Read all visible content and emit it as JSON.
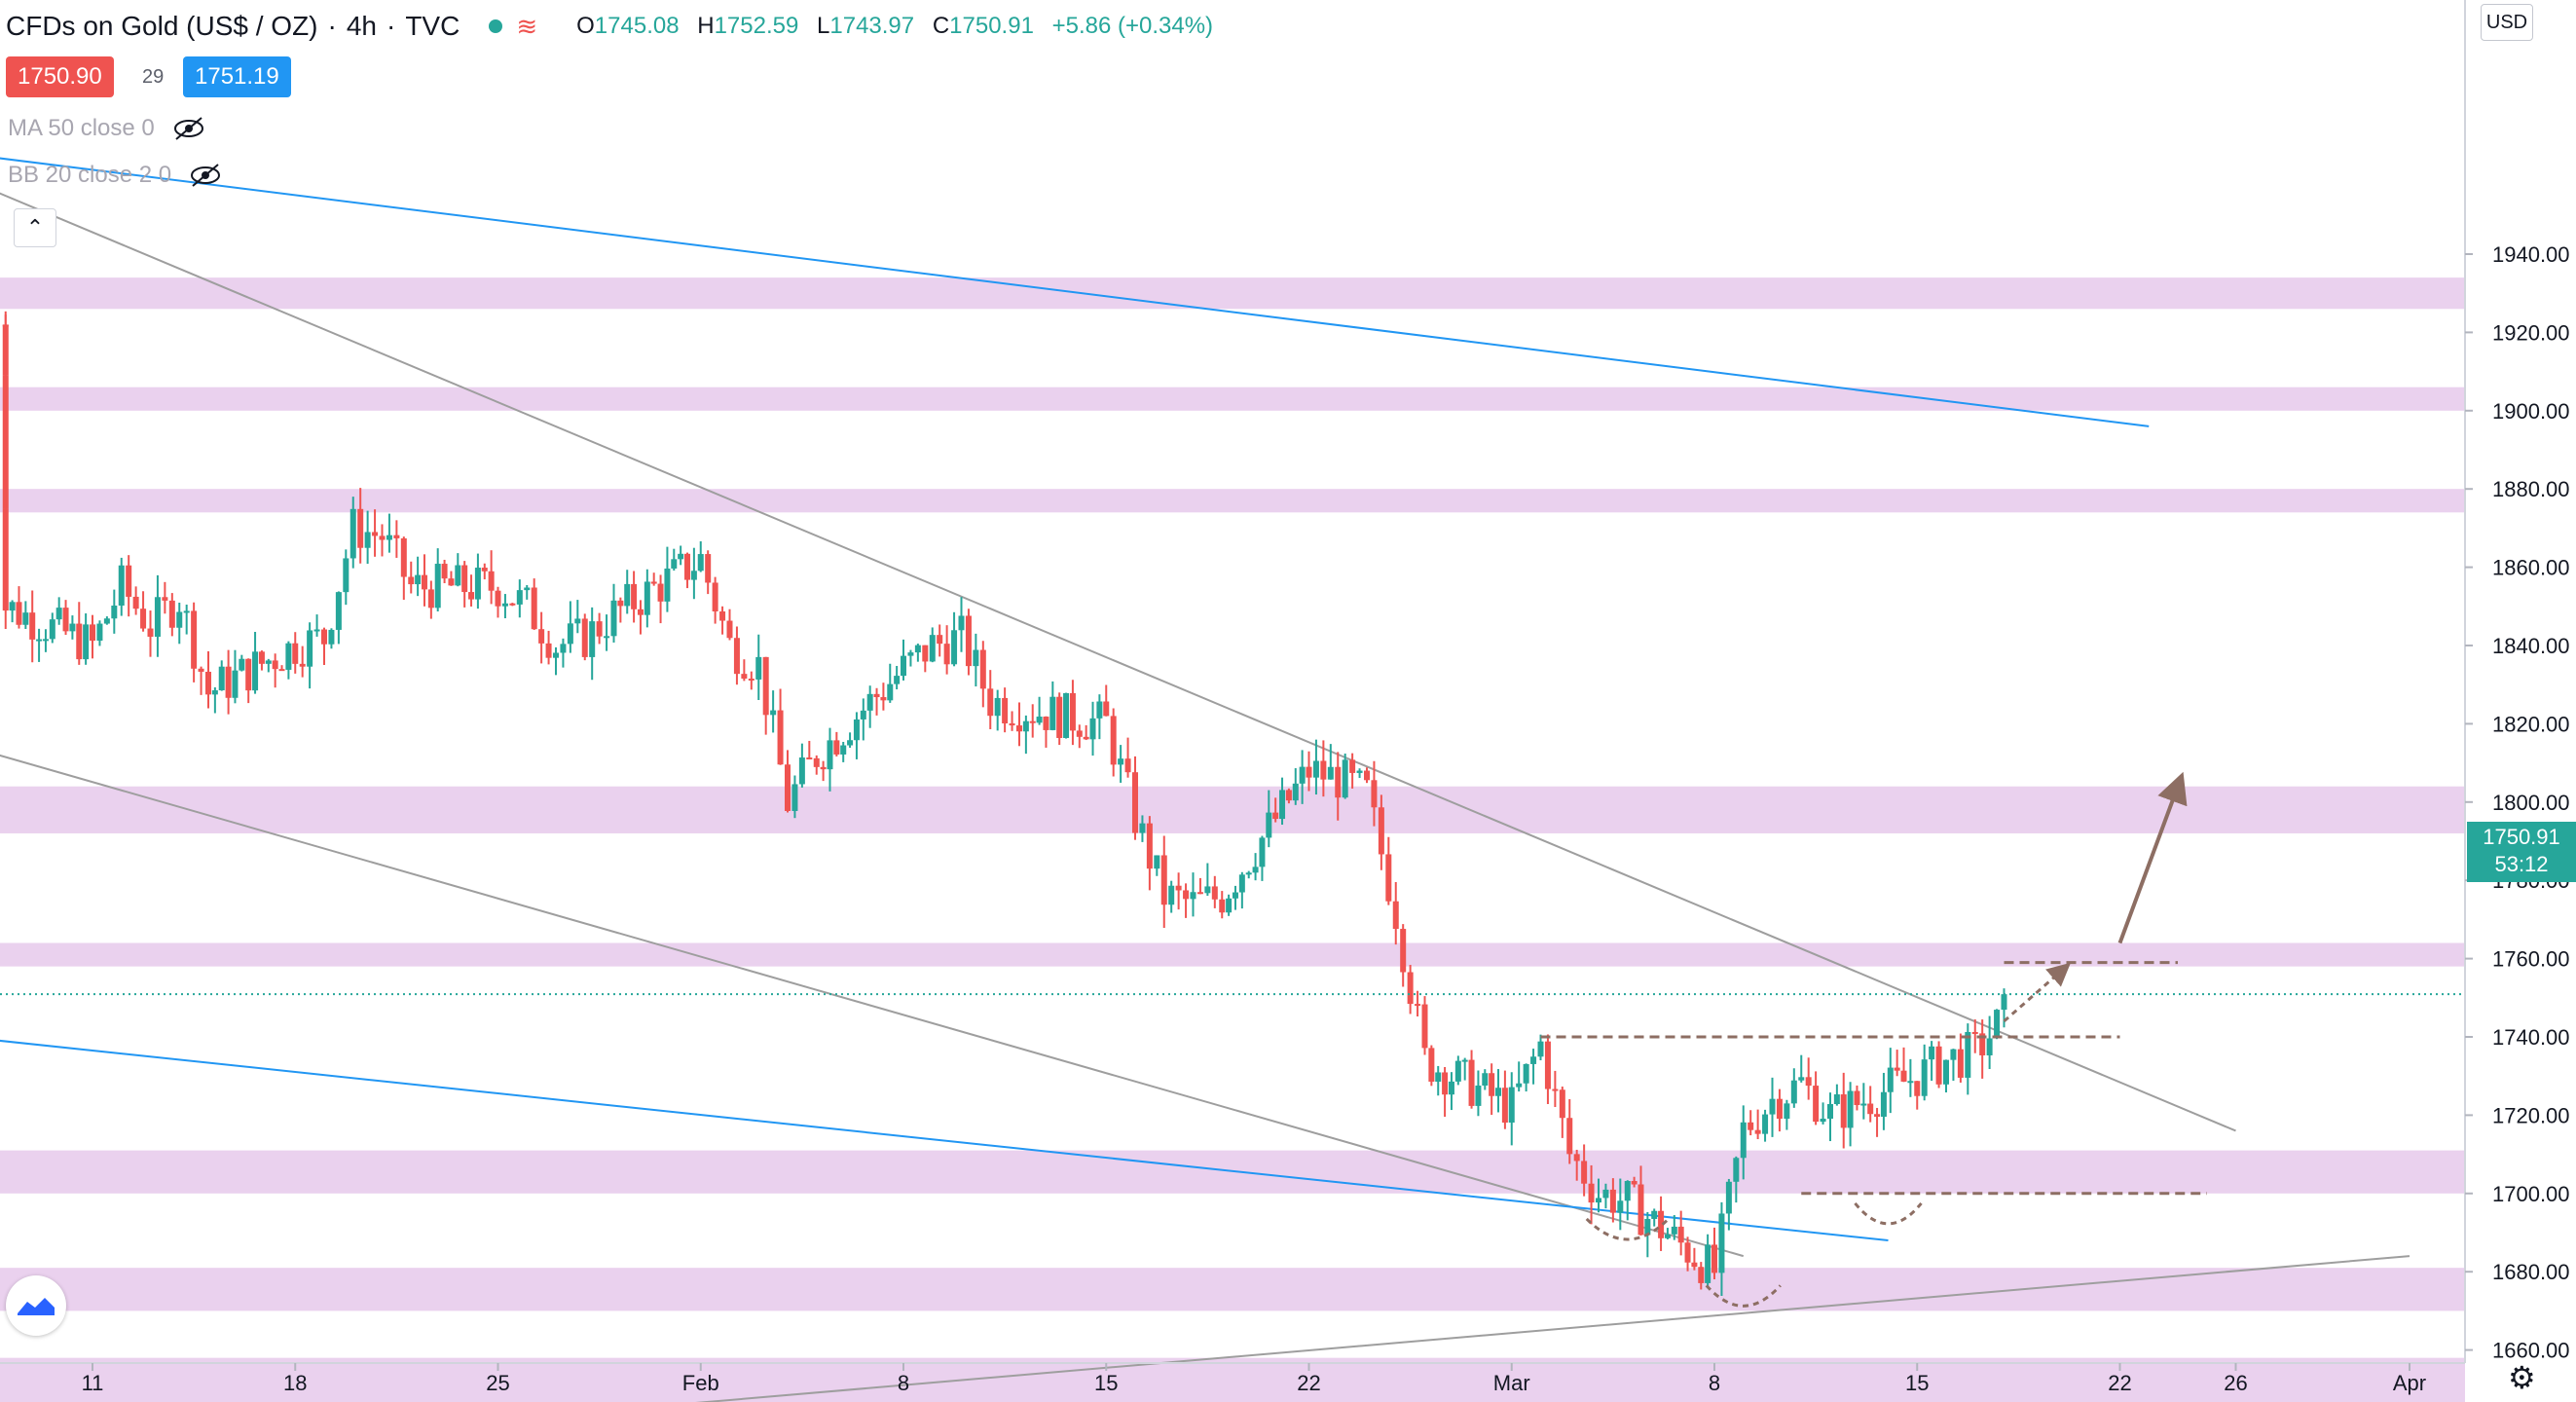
{
  "header": {
    "symbol_title": "CFDs on Gold (US$ / OZ)",
    "interval": "4h",
    "source": "TVC",
    "ohlc": {
      "open": "1745.08",
      "high": "1752.59",
      "low": "1743.97",
      "close": "1750.91",
      "change": "+5.86 (+0.34%)"
    },
    "sell_price": "1750.90",
    "spread": "29",
    "buy_price": "1751.19"
  },
  "indicators": [
    {
      "label": "MA 50 close 0"
    },
    {
      "label": "BB 20 close 2 0"
    }
  ],
  "price_scale": {
    "currency_button": "USD",
    "last_price": "1750.91",
    "countdown": "53:12"
  },
  "colors": {
    "up": "#26a69a",
    "down": "#ef5350",
    "zone": "#e1bee7",
    "trend_blue": "#2196f3",
    "trend_gray": "#9e9e9e",
    "dashed": "#8d6e63",
    "arrow": "#8d6e63",
    "sell": "#ef5350",
    "buy": "#2196f3"
  },
  "chart_data": {
    "type": "candlestick",
    "title": "CFDs on Gold (US$ / OZ), 4h, TVC",
    "ylim": [
      1620,
      1960
    ],
    "y_ticks": [
      1640,
      1660,
      1680,
      1700,
      1720,
      1740,
      1760,
      1780,
      1800,
      1820,
      1840,
      1860,
      1880,
      1900,
      1920,
      1940
    ],
    "x_ticks": [
      "11",
      "18",
      "25",
      "Feb",
      "8",
      "15",
      "22",
      "Mar",
      "8",
      "15",
      "22",
      "26",
      "Apr"
    ],
    "ohlc_path": [
      [
        "2021-01-08",
        1922
      ],
      [
        "2021-01-08",
        1912
      ],
      [
        "2021-01-08",
        1880
      ],
      [
        "2021-01-08",
        1850
      ],
      [
        "2021-01-11",
        1840
      ],
      [
        "2021-01-12",
        1855
      ],
      [
        "2021-01-13",
        1845
      ],
      [
        "2021-01-14",
        1852
      ],
      [
        "2021-01-15",
        1828
      ],
      [
        "2021-01-18",
        1840
      ],
      [
        "2021-01-19",
        1842
      ],
      [
        "2021-01-20",
        1870
      ],
      [
        "2021-01-21",
        1868
      ],
      [
        "2021-01-22",
        1855
      ],
      [
        "2021-01-25",
        1855
      ],
      [
        "2021-01-26",
        1850
      ],
      [
        "2021-01-27",
        1840
      ],
      [
        "2021-01-28",
        1842
      ],
      [
        "2021-01-29",
        1848
      ],
      [
        "2021-02-01",
        1862
      ],
      [
        "2021-02-02",
        1840
      ],
      [
        "2021-02-03",
        1835
      ],
      [
        "2021-02-04",
        1800
      ],
      [
        "2021-02-05",
        1812
      ],
      [
        "2021-02-08",
        1834
      ],
      [
        "2021-02-09",
        1840
      ],
      [
        "2021-02-10",
        1842
      ],
      [
        "2021-02-11",
        1826
      ],
      [
        "2021-02-12",
        1824
      ],
      [
        "2021-02-15",
        1820
      ],
      [
        "2021-02-16",
        1796
      ],
      [
        "2021-02-17",
        1776
      ],
      [
        "2021-02-18",
        1774
      ],
      [
        "2021-02-19",
        1776
      ],
      [
        "2021-02-22",
        1808
      ],
      [
        "2021-02-23",
        1806
      ],
      [
        "2021-02-24",
        1802
      ],
      [
        "2021-02-25",
        1772
      ],
      [
        "2021-02-26",
        1734
      ],
      [
        "2021-03-01",
        1722
      ],
      [
        "2021-03-02",
        1738
      ],
      [
        "2021-03-03",
        1710
      ],
      [
        "2021-03-04",
        1700
      ],
      [
        "2021-03-05",
        1698
      ],
      [
        "2021-03-08",
        1680
      ],
      [
        "2021-03-09",
        1716
      ],
      [
        "2021-03-10",
        1724
      ],
      [
        "2021-03-11",
        1728
      ],
      [
        "2021-03-12",
        1720
      ],
      [
        "2021-03-15",
        1730
      ],
      [
        "2021-03-16",
        1734
      ],
      [
        "2021-03-17",
        1736
      ],
      [
        "2021-03-18",
        1745
      ],
      [
        "2021-03-18",
        1750.91
      ]
    ],
    "last_close": 1750.91,
    "resistance_zones": [
      [
        1926,
        1934
      ],
      [
        1900,
        1906
      ],
      [
        1874,
        1880
      ],
      [
        1792,
        1804
      ],
      [
        1758,
        1764
      ],
      [
        1700,
        1711
      ],
      [
        1670,
        1681
      ],
      [
        1646,
        1658
      ]
    ],
    "trend_lines": [
      {
        "color": "blue",
        "points": [
          [
            "2021-01-04",
            1968
          ],
          [
            "2021-03-23",
            1896
          ]
        ]
      },
      {
        "color": "gray",
        "points": [
          [
            "2021-01-07",
            1958
          ],
          [
            "2021-03-26",
            1716
          ]
        ]
      },
      {
        "color": "gray",
        "points": [
          [
            "2021-01-04",
            1820
          ],
          [
            "2021-03-09",
            1684
          ]
        ]
      },
      {
        "color": "blue",
        "points": [
          [
            "2021-01-04",
            1742
          ],
          [
            "2021-03-14",
            1688
          ]
        ]
      },
      {
        "color": "gray",
        "points": [
          [
            "2021-01-09",
            1632
          ],
          [
            "2021-04-01",
            1684
          ]
        ]
      }
    ],
    "levels": [
      {
        "price": 1740,
        "from": "2021-03-02",
        "to": "2021-03-22"
      },
      {
        "price": 1700,
        "from": "2021-03-11",
        "to": "2021-03-25"
      },
      {
        "price": 1759,
        "from": "2021-03-18",
        "to": "2021-03-24"
      }
    ],
    "projection_arrows": [
      {
        "from": [
          "2021-03-22",
          1764
        ],
        "to": [
          "2021-03-24",
          1804
        ]
      },
      {
        "from": [
          "2021-03-18",
          1744
        ],
        "to": [
          "2021-03-20",
          1757
        ]
      }
    ],
    "grid": false
  }
}
